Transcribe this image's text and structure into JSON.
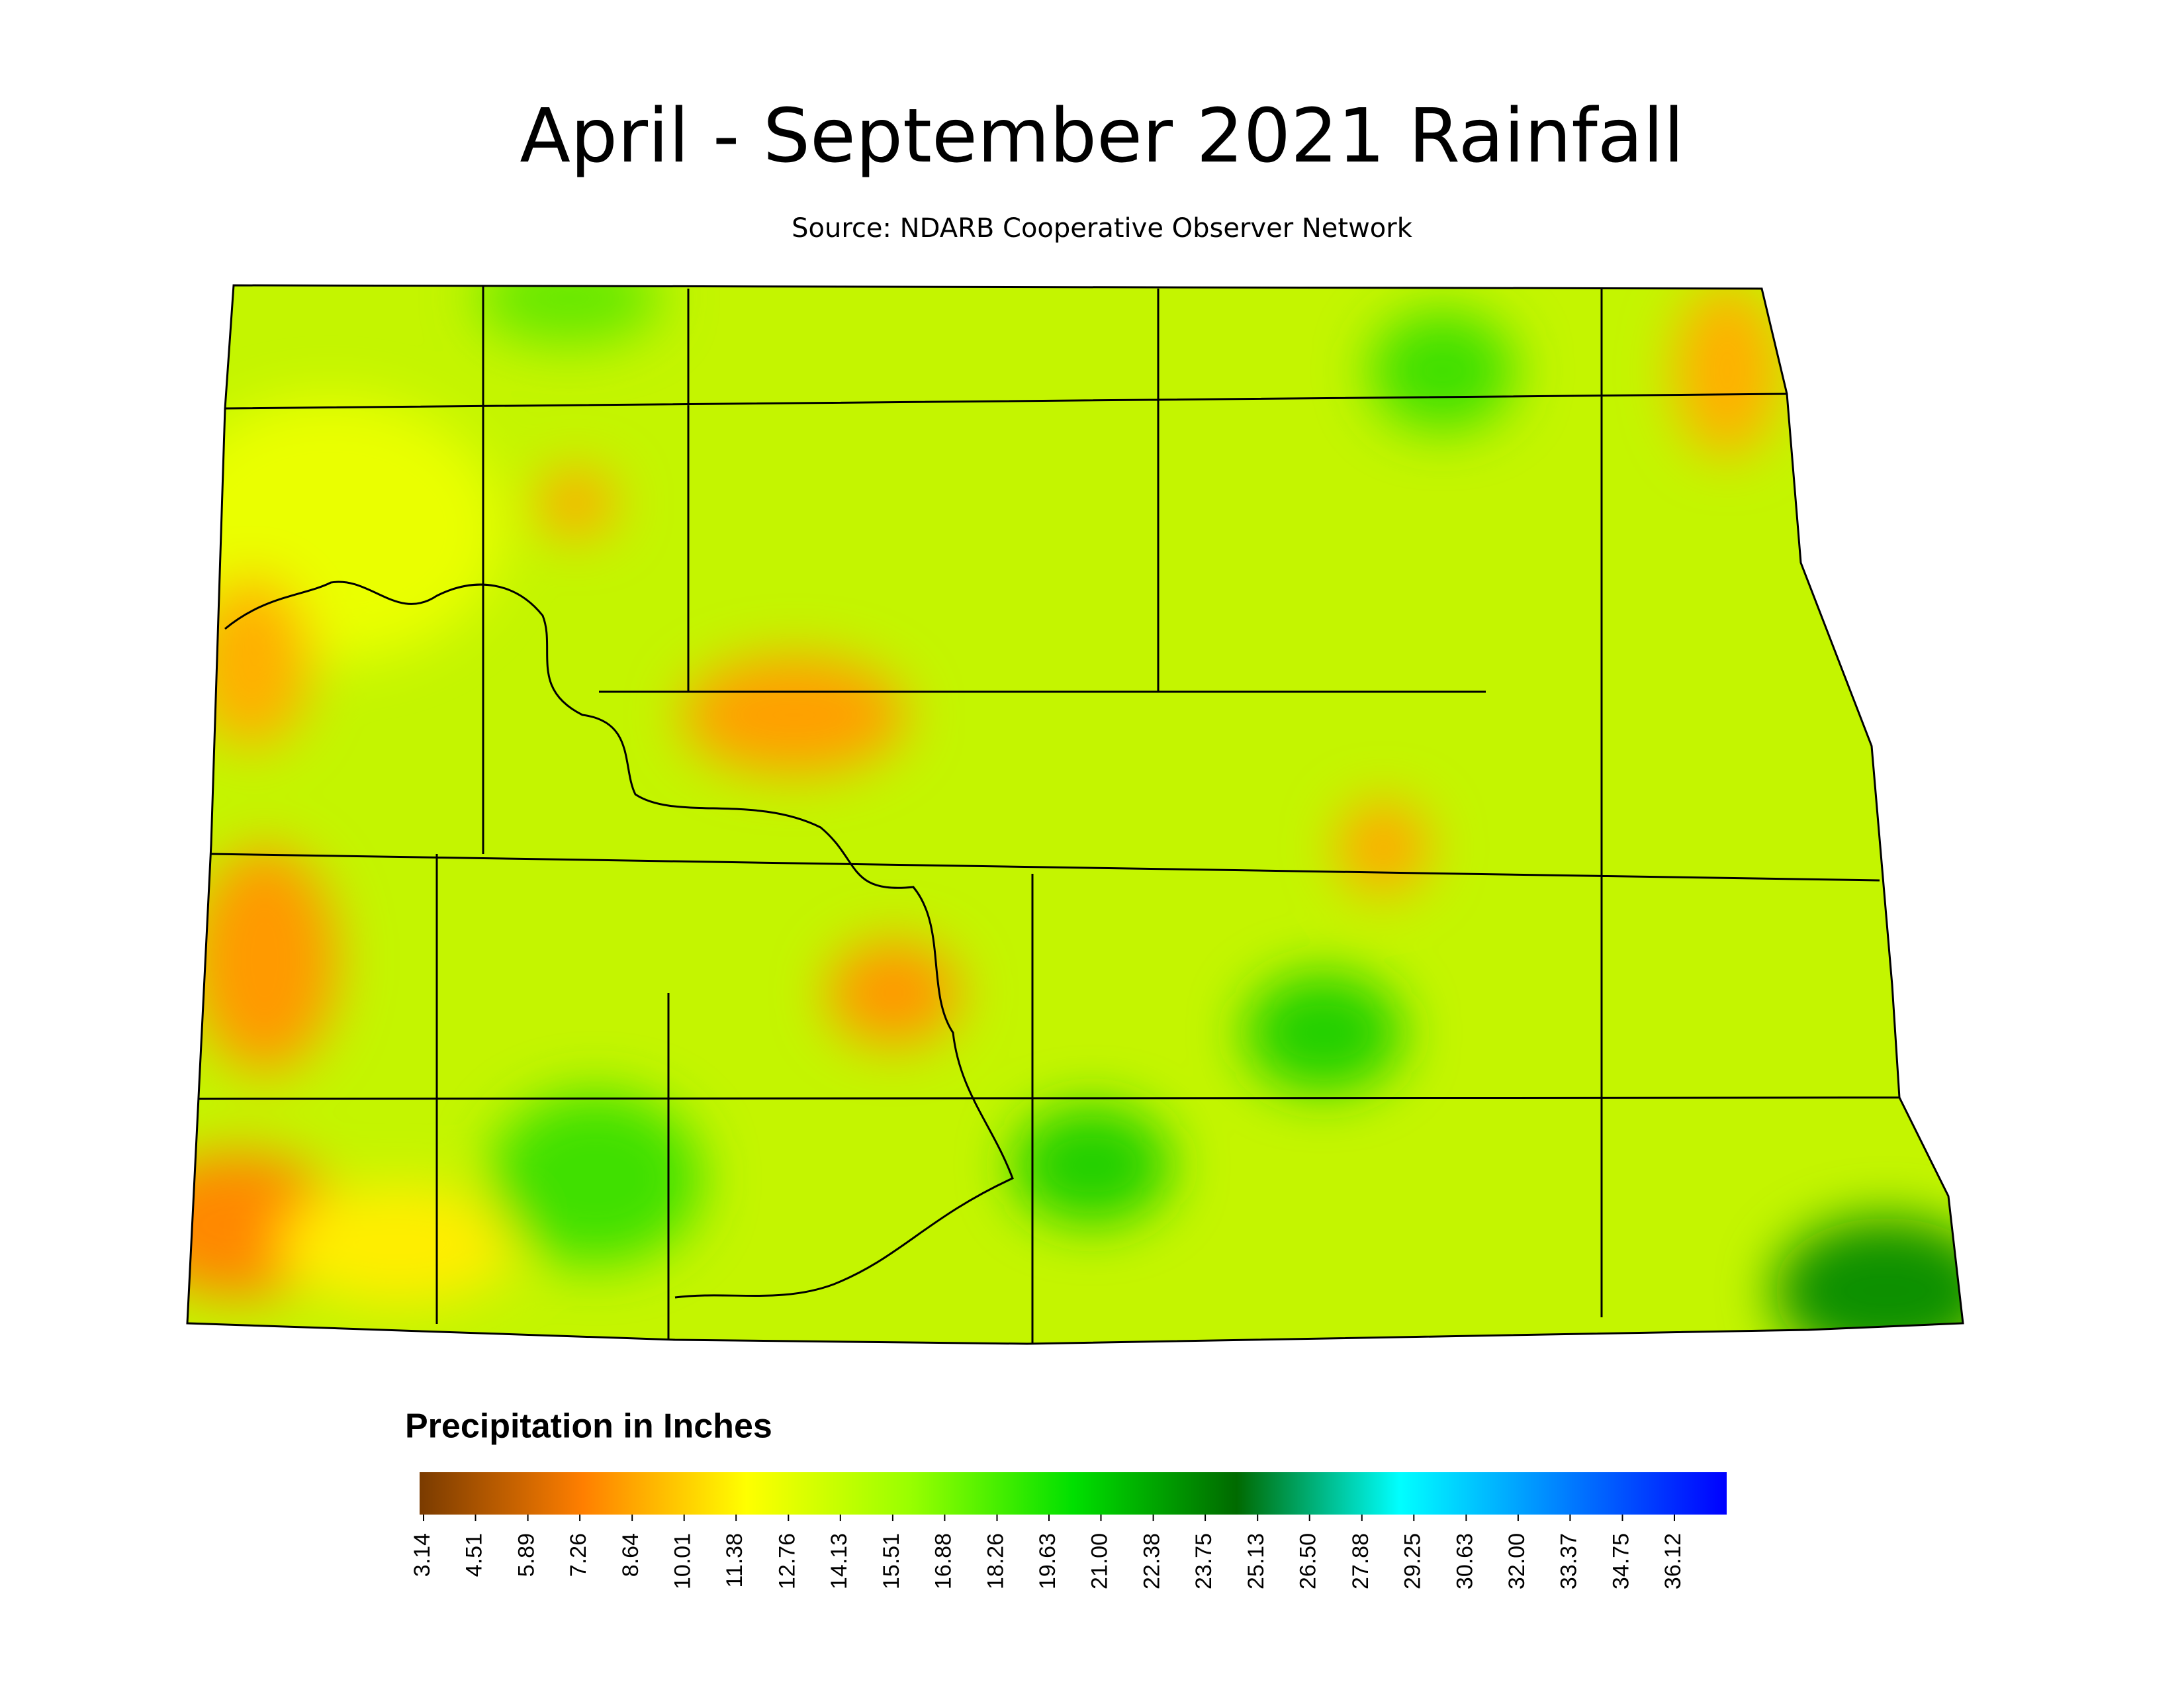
{
  "title": "April - September 2021 Rainfall",
  "source": "Source: NDARB Cooperative Observer Network",
  "legend": {
    "title": "Precipitation in Inches",
    "colors": [
      "#7a3b00",
      "#ff7f00",
      "#ffff00",
      "#99ff00",
      "#00e000",
      "#006a00",
      "#00ffff",
      "#0080ff",
      "#0000ff"
    ],
    "ticks": [
      3.14,
      4.51,
      5.89,
      7.26,
      8.64,
      10.01,
      11.38,
      12.76,
      14.13,
      15.51,
      16.88,
      18.26,
      19.63,
      {
        "value": 21,
        "label": "21.00"
      },
      22.38,
      23.75,
      25.13,
      {
        "value": 26.5,
        "label": "26.50"
      },
      27.88,
      29.25,
      30.63,
      {
        "value": 32,
        "label": "32.00"
      },
      33.37,
      34.75,
      36.12
    ]
  }
}
